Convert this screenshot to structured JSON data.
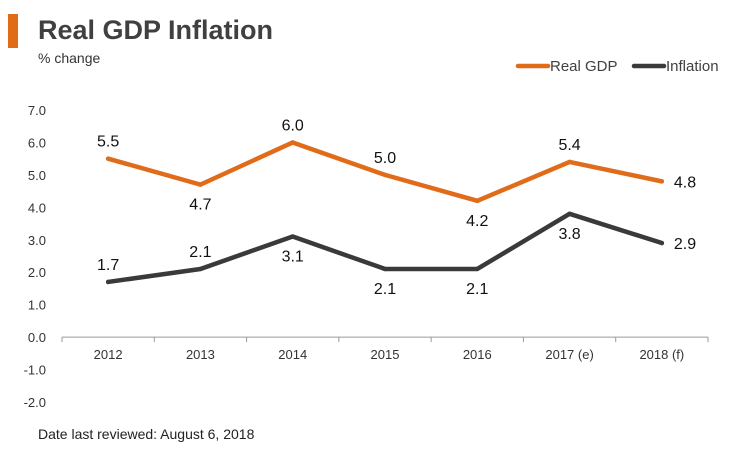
{
  "header": {
    "title": "Real GDP Inflation",
    "subtitle": "% change",
    "accent_color": "#E06C1A"
  },
  "footer": {
    "note": "Date last reviewed: August 6, 2018"
  },
  "chart_data": {
    "type": "line",
    "title": "Real GDP Inflation",
    "subtitle": "% change",
    "xlabel": "",
    "ylabel": "",
    "categories": [
      "2012",
      "2013",
      "2014",
      "2015",
      "2016",
      "2017 (e)",
      "2018 (f)"
    ],
    "ylim": [
      -2.0,
      7.0
    ],
    "yticks": [
      "7.0",
      "6.0",
      "5.0",
      "4.0",
      "3.0",
      "2.0",
      "1.0",
      "0.0",
      "-1.0",
      "-2.0"
    ],
    "grid": false,
    "legend_position": "top-right",
    "series": [
      {
        "name": "Real GDP",
        "color": "#E06C1A",
        "values": [
          5.5,
          4.7,
          6.0,
          5.0,
          4.2,
          5.4,
          4.8
        ],
        "labels": [
          "5.5",
          "4.7",
          "6.0",
          "5.0",
          "4.2",
          "5.4",
          "4.8"
        ],
        "label_positions": [
          "above",
          "below",
          "above",
          "above",
          "below",
          "above",
          "right"
        ]
      },
      {
        "name": "Inflation",
        "color": "#3A3A3A",
        "values": [
          1.7,
          2.1,
          3.1,
          2.1,
          2.1,
          3.8,
          2.9
        ],
        "labels": [
          "1.7",
          "2.1",
          "3.1",
          "2.1",
          "2.1",
          "3.8",
          "2.9"
        ],
        "label_positions": [
          "above",
          "above",
          "below",
          "below",
          "below",
          "below",
          "right"
        ]
      }
    ]
  }
}
